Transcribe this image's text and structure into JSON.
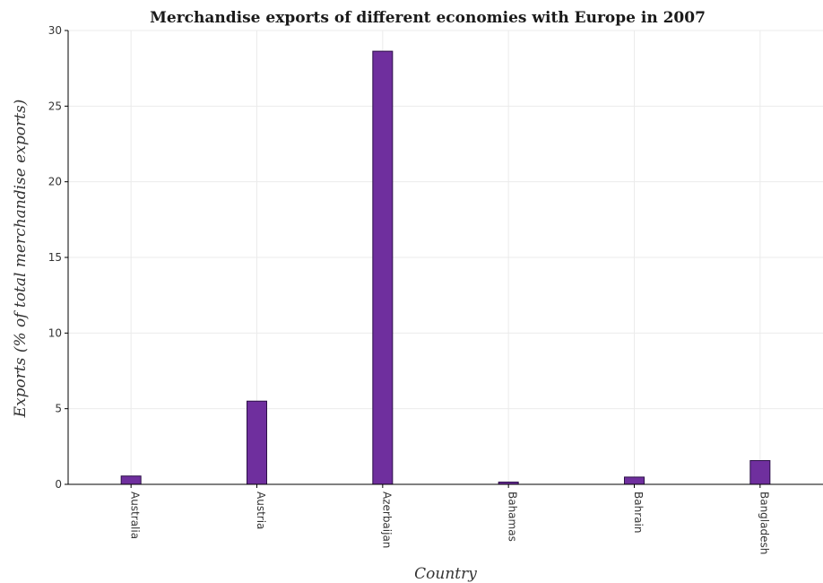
{
  "chart_data": {
    "type": "bar",
    "title": "Merchandise exports of different economies with Europe in 2007",
    "xlabel": "Country",
    "ylabel": "Exports (% of total merchandise exports)",
    "categories": [
      "Australia",
      "Austria",
      "Azerbaijan",
      "Bahamas",
      "Bahrain",
      "Bangladesh"
    ],
    "values": [
      0.55,
      5.5,
      28.63,
      0.15,
      0.48,
      1.57
    ],
    "ylim": [
      0,
      30
    ],
    "yticks": [
      0,
      5,
      10,
      15,
      20,
      25,
      30
    ],
    "grid": true,
    "legend": "none",
    "bar_color": "#6f2f9e"
  }
}
